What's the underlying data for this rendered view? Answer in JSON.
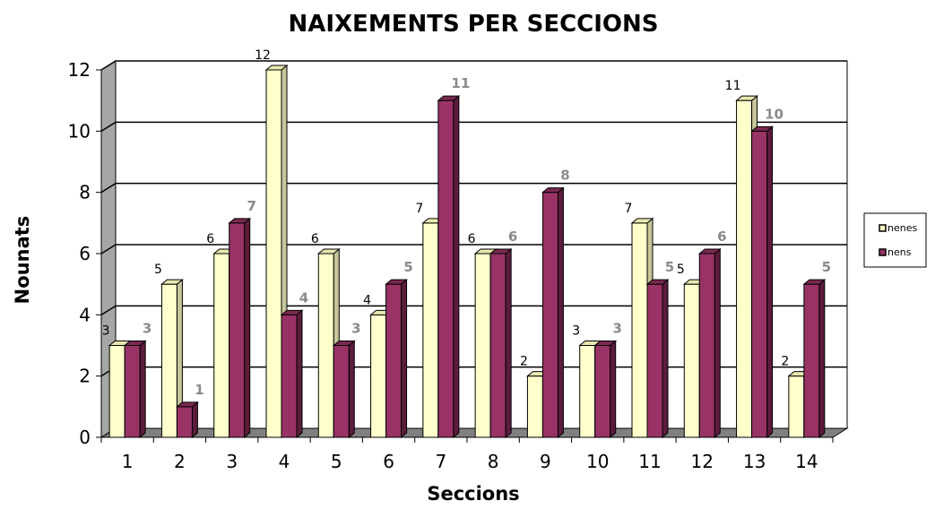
{
  "chart_data": {
    "type": "bar",
    "title": "NAIXEMENTS PER SECCIONS",
    "xlabel": "Seccions",
    "ylabel": "Nounats",
    "categories": [
      "1",
      "2",
      "3",
      "4",
      "5",
      "6",
      "7",
      "8",
      "9",
      "10",
      "11",
      "12",
      "13",
      "14"
    ],
    "series": [
      {
        "name": "nenes",
        "values": [
          3,
          5,
          6,
          12,
          6,
          4,
          7,
          6,
          2,
          3,
          7,
          5,
          11,
          2
        ]
      },
      {
        "name": "nens",
        "values": [
          3,
          1,
          7,
          4,
          3,
          5,
          11,
          6,
          8,
          3,
          5,
          6,
          10,
          5
        ]
      }
    ],
    "ylim": [
      0,
      12
    ],
    "yticks": [
      "0",
      "2",
      "4",
      "6",
      "8",
      "10",
      "12"
    ],
    "grid": true,
    "legend_position": "right",
    "colors": {
      "nenes_front": "#ffffcc",
      "nenes_side": "#c6c69a",
      "nenes_top": "#e8e8b0",
      "nens_front": "#993366",
      "nens_side": "#5c1c3c",
      "nens_top": "#7a284f",
      "wall": "#a6a6a6",
      "floor": "#808080",
      "label_nenes": "#000000",
      "label_nens": "#8a8a8a"
    }
  }
}
